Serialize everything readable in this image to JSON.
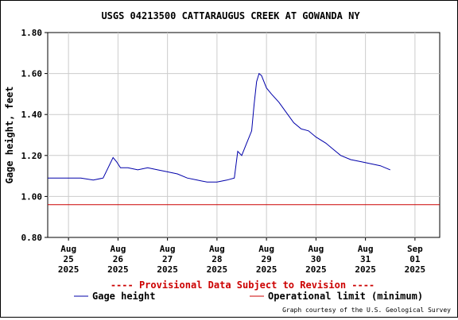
{
  "chart_data": {
    "type": "line",
    "title": "USGS 04213500 CATTARAUGUS CREEK AT GOWANDA NY",
    "ylabel": "Gage height, feet",
    "ylim": [
      0.8,
      1.8
    ],
    "yticks": [
      "0.80",
      "1.00",
      "1.20",
      "1.40",
      "1.60",
      "1.80"
    ],
    "xlim": [
      25,
      32
    ],
    "xticks": [
      {
        "value": 25,
        "lines": [
          "Aug",
          "25",
          "2025"
        ]
      },
      {
        "value": 26,
        "lines": [
          "Aug",
          "26",
          "2025"
        ]
      },
      {
        "value": 27,
        "lines": [
          "Aug",
          "27",
          "2025"
        ]
      },
      {
        "value": 28,
        "lines": [
          "Aug",
          "28",
          "2025"
        ]
      },
      {
        "value": 29,
        "lines": [
          "Aug",
          "29",
          "2025"
        ]
      },
      {
        "value": 30,
        "lines": [
          "Aug",
          "30",
          "2025"
        ]
      },
      {
        "value": 31,
        "lines": [
          "Aug",
          "31",
          "2025"
        ]
      },
      {
        "value": 32,
        "lines": [
          "Sep",
          "01",
          "2025"
        ]
      }
    ],
    "grid": true,
    "series": [
      {
        "name": "Gage height",
        "color": "#0000aa",
        "x": [
          24.58,
          24.75,
          25.0,
          25.25,
          25.5,
          25.7,
          25.9,
          25.97,
          26.05,
          26.2,
          26.4,
          26.6,
          26.8,
          27.0,
          27.2,
          27.4,
          27.6,
          27.8,
          28.0,
          28.2,
          28.35,
          28.42,
          28.5,
          28.6,
          28.7,
          28.75,
          28.8,
          28.85,
          28.9,
          29.0,
          29.1,
          29.25,
          29.4,
          29.55,
          29.7,
          29.85,
          30.0,
          30.2,
          30.35,
          30.5,
          30.7,
          30.9,
          31.1,
          31.3,
          31.5
        ],
        "y": [
          1.09,
          1.09,
          1.09,
          1.09,
          1.08,
          1.09,
          1.19,
          1.17,
          1.14,
          1.14,
          1.13,
          1.14,
          1.13,
          1.12,
          1.11,
          1.09,
          1.08,
          1.07,
          1.07,
          1.08,
          1.09,
          1.22,
          1.2,
          1.26,
          1.32,
          1.45,
          1.56,
          1.6,
          1.59,
          1.53,
          1.5,
          1.46,
          1.41,
          1.36,
          1.33,
          1.32,
          1.29,
          1.26,
          1.23,
          1.2,
          1.18,
          1.17,
          1.16,
          1.15,
          1.13
        ]
      },
      {
        "name": "Operational limit (minimum)",
        "color": "#cc0000",
        "x": [
          24.58,
          32.5
        ],
        "y": [
          0.96,
          0.96
        ]
      }
    ],
    "provisional_note": "---- Provisional Data Subject to Revision ----",
    "credit": "Graph courtesy of the U.S. Geological Survey"
  }
}
